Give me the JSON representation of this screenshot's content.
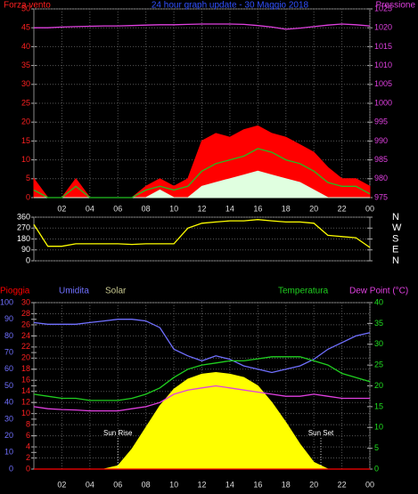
{
  "chart_data": [
    {
      "type": "line",
      "title": "24 hour graph update - 30 Maggio 2018",
      "left_label": "Forza vento",
      "right_label": "Pressione",
      "x": [
        0,
        1,
        2,
        3,
        4,
        5,
        6,
        7,
        8,
        9,
        10,
        11,
        12,
        13,
        14,
        15,
        16,
        17,
        18,
        19,
        20,
        21,
        22,
        23,
        24
      ],
      "xlim": [
        0,
        24
      ],
      "xticks": [
        {
          "value": 2,
          "label": "02"
        },
        {
          "value": 4,
          "label": "04"
        },
        {
          "value": 6,
          "label": "06"
        },
        {
          "value": 8,
          "label": "08"
        },
        {
          "value": 10,
          "label": "10"
        },
        12,
        14,
        16,
        18,
        20,
        22,
        {
          "value": 24,
          "label": "00"
        }
      ],
      "ylim": [
        0,
        50
      ],
      "yticks": [
        0,
        5,
        10,
        15,
        20,
        25,
        30,
        35,
        40,
        45,
        50
      ],
      "ytick_color": "#ff2020",
      "y2lim": [
        975,
        1025
      ],
      "y2ticks": [
        975,
        980,
        985,
        990,
        995,
        1000,
        1005,
        1010,
        1015,
        1020,
        1025
      ],
      "y2tick_color": "#e040e0",
      "grid": true,
      "series": [
        {
          "color": "#ff0000",
          "style": "area",
          "values": [
            5,
            0,
            0,
            5,
            0,
            0,
            0,
            0,
            3,
            5,
            3,
            5,
            15,
            17,
            16,
            18,
            19,
            17,
            16,
            14,
            12,
            8,
            5,
            5,
            3
          ]
        },
        {
          "color": "#20c020",
          "style": "line",
          "values": [
            2,
            0,
            0,
            3,
            0,
            0,
            0,
            0,
            2,
            3,
            2,
            3,
            7,
            9,
            10,
            11,
            13,
            12,
            10,
            9,
            7,
            4,
            3,
            3,
            1
          ]
        },
        {
          "color": "#e0ffe0",
          "style": "area",
          "values": [
            0,
            0,
            0,
            0,
            0,
            0,
            0,
            0,
            0,
            2,
            0,
            0,
            3,
            4,
            5,
            6,
            7,
            6,
            5,
            4,
            2,
            0,
            0,
            0,
            0
          ]
        },
        {
          "color": "#e040e0",
          "style": "line",
          "axis": "y2",
          "values": [
            1020,
            1020,
            1020.2,
            1020.3,
            1020.4,
            1020.5,
            1020.5,
            1020.6,
            1020.7,
            1020.8,
            1020.8,
            1020.9,
            1021,
            1021,
            1021,
            1020.9,
            1020.6,
            1020.2,
            1019.6,
            1019.9,
            1020.3,
            1020.7,
            1021,
            1020.8,
            1020.5
          ]
        }
      ]
    },
    {
      "type": "line",
      "x": [
        0,
        1,
        2,
        3,
        4,
        5,
        6,
        7,
        8,
        9,
        10,
        11,
        12,
        13,
        14,
        15,
        16,
        17,
        18,
        19,
        20,
        21,
        22,
        23,
        24
      ],
      "xlim": [
        0,
        24
      ],
      "ylim": [
        0,
        360
      ],
      "yticks": [
        0,
        90,
        180,
        270,
        360
      ],
      "ytick_color": "#ffffff",
      "y2lim": [
        0,
        360
      ],
      "y2ticks": [
        {
          "value": 0,
          "label": "N"
        },
        {
          "value": 90,
          "label": "E"
        },
        {
          "value": 180,
          "label": "S"
        },
        {
          "value": 270,
          "label": "W"
        },
        {
          "value": 360,
          "label": "N"
        }
      ],
      "y2tick_color": "#ffffff",
      "grid": true,
      "series": [
        {
          "color": "#ffff00",
          "style": "line",
          "values": [
            300,
            120,
            120,
            140,
            140,
            140,
            140,
            135,
            140,
            140,
            140,
            270,
            310,
            320,
            330,
            330,
            340,
            330,
            320,
            320,
            310,
            210,
            200,
            190,
            110
          ]
        }
      ]
    },
    {
      "type": "line",
      "x": [
        0,
        1,
        2,
        3,
        4,
        5,
        6,
        7,
        8,
        9,
        10,
        11,
        12,
        13,
        14,
        15,
        16,
        17,
        18,
        19,
        20,
        21,
        22,
        23,
        24
      ],
      "xlim": [
        0,
        24
      ],
      "xticks": [
        {
          "value": 2,
          "label": "02"
        },
        {
          "value": 4,
          "label": "04"
        },
        {
          "value": 6,
          "label": "06"
        },
        {
          "value": 8,
          "label": "08"
        },
        {
          "value": 10,
          "label": "10"
        },
        12,
        14,
        16,
        18,
        20,
        22,
        {
          "value": 24,
          "label": "00"
        }
      ],
      "ylim": [
        0,
        30
      ],
      "yticks": [
        0,
        2,
        4,
        6,
        8,
        10,
        12,
        14,
        16,
        18,
        20,
        22,
        24,
        26,
        28,
        30
      ],
      "ytick_color": "#ff2020",
      "y2lim": [
        0,
        100
      ],
      "y2ticks": [
        0,
        10,
        20,
        30,
        40,
        50,
        60,
        70,
        80,
        90,
        100
      ],
      "y2tick_color": "#7070ff",
      "y3lim": [
        0,
        40
      ],
      "y3ticks": [
        0,
        5,
        10,
        15,
        20,
        25,
        30,
        35,
        40
      ],
      "y3tick_color": "#20e020",
      "grid": true,
      "annotations": [
        {
          "x": 6,
          "label": "Sun Rise"
        },
        {
          "x": 20.5,
          "label": "Sun Set"
        }
      ],
      "series": [
        {
          "name": "Pioggia",
          "color": "#ff0000",
          "style": "line",
          "values": [
            0,
            0,
            0,
            0,
            0,
            0,
            0,
            0,
            0,
            0,
            0,
            0,
            0,
            0,
            0,
            0,
            0,
            0,
            0,
            0,
            0,
            0,
            0,
            0,
            0
          ]
        },
        {
          "name": "Umidita",
          "color": "#7070ff",
          "style": "line",
          "axis": "y2",
          "values": [
            88,
            87,
            87,
            87,
            88,
            89,
            90,
            90,
            89,
            85,
            72,
            68,
            65,
            68,
            66,
            62,
            60,
            58,
            60,
            62,
            66,
            72,
            76,
            80,
            82
          ]
        },
        {
          "name": "Solar",
          "color": "#ffff00",
          "style": "area",
          "axis": "y2",
          "label_color": "#c8c890",
          "values": [
            0,
            0,
            0,
            0,
            0,
            0,
            2,
            12,
            25,
            38,
            48,
            54,
            57,
            58,
            57,
            55,
            50,
            40,
            28,
            15,
            4,
            0,
            0,
            0,
            0
          ]
        },
        {
          "name": "Temperatura",
          "color": "#20d020",
          "style": "line",
          "axis": "y3",
          "values": [
            18,
            17.5,
            17,
            17,
            16.5,
            16.5,
            16.5,
            17,
            18,
            19.5,
            22,
            24,
            25,
            25.5,
            26,
            26,
            26.5,
            27,
            27,
            27,
            26,
            25,
            23,
            22,
            21
          ]
        },
        {
          "name": "Dew Point (°C)",
          "color": "#e040e0",
          "style": "line",
          "axis": "y3",
          "values": [
            15,
            14.5,
            14.3,
            14.2,
            14,
            14,
            14,
            14.5,
            15,
            16,
            18,
            19,
            19.5,
            20,
            19.5,
            19,
            18.5,
            18,
            17.5,
            17.5,
            18,
            17.5,
            17,
            17,
            17
          ]
        }
      ]
    }
  ]
}
